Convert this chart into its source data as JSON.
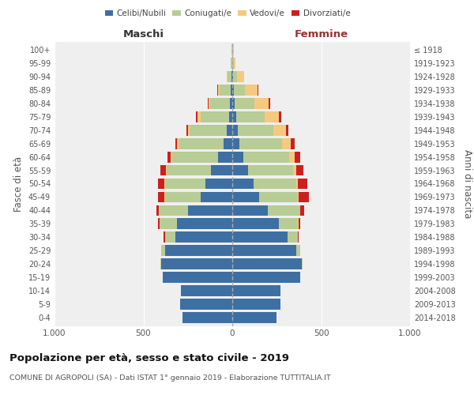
{
  "age_groups": [
    "0-4",
    "5-9",
    "10-14",
    "15-19",
    "20-24",
    "25-29",
    "30-34",
    "35-39",
    "40-44",
    "45-49",
    "50-54",
    "55-59",
    "60-64",
    "65-69",
    "70-74",
    "75-79",
    "80-84",
    "85-89",
    "90-94",
    "95-99",
    "100+"
  ],
  "birth_years": [
    "2014-2018",
    "2009-2013",
    "2004-2008",
    "1999-2003",
    "1994-1998",
    "1989-1993",
    "1984-1988",
    "1979-1983",
    "1974-1978",
    "1969-1973",
    "1964-1968",
    "1959-1963",
    "1954-1958",
    "1949-1953",
    "1944-1948",
    "1939-1943",
    "1934-1938",
    "1929-1933",
    "1924-1928",
    "1919-1923",
    "≤ 1918"
  ],
  "males": {
    "celibi": [
      280,
      295,
      290,
      390,
      400,
      380,
      320,
      310,
      250,
      180,
      150,
      120,
      80,
      50,
      30,
      20,
      15,
      10,
      5,
      2,
      2
    ],
    "coniugati": [
      0,
      0,
      0,
      3,
      5,
      20,
      60,
      100,
      160,
      200,
      230,
      250,
      260,
      250,
      210,
      160,
      110,
      60,
      20,
      5,
      2
    ],
    "vedovi": [
      0,
      0,
      0,
      0,
      0,
      0,
      0,
      0,
      2,
      2,
      2,
      3,
      5,
      10,
      10,
      15,
      10,
      10,
      5,
      2,
      0
    ],
    "divorziati": [
      0,
      0,
      0,
      0,
      0,
      0,
      5,
      10,
      15,
      35,
      35,
      30,
      20,
      10,
      10,
      10,
      5,
      5,
      2,
      0,
      0
    ]
  },
  "females": {
    "nubili": [
      250,
      270,
      270,
      380,
      390,
      360,
      310,
      260,
      200,
      150,
      120,
      90,
      60,
      40,
      30,
      20,
      15,
      10,
      5,
      2,
      2
    ],
    "coniugate": [
      0,
      0,
      0,
      3,
      5,
      20,
      60,
      110,
      180,
      220,
      240,
      250,
      260,
      240,
      200,
      160,
      110,
      60,
      20,
      5,
      3
    ],
    "vedove": [
      0,
      0,
      0,
      0,
      0,
      0,
      0,
      2,
      3,
      5,
      10,
      20,
      30,
      50,
      70,
      80,
      80,
      70,
      40,
      10,
      2
    ],
    "divorziate": [
      0,
      0,
      0,
      0,
      0,
      2,
      5,
      10,
      20,
      55,
      50,
      40,
      30,
      20,
      15,
      15,
      10,
      5,
      2,
      0,
      0
    ]
  },
  "colors": {
    "celibi": "#3e6fa3",
    "coniugati": "#b8cc96",
    "vedovi": "#f5ca7e",
    "divorziati": "#cc2020"
  },
  "legend_labels": [
    "Celibi/Nubili",
    "Coniugati/e",
    "Vedovi/e",
    "Divorziati/e"
  ],
  "title": "Popolazione per età, sesso e stato civile - 2019",
  "subtitle": "COMUNE DI AGROPOLI (SA) - Dati ISTAT 1° gennaio 2019 - Elaborazione TUTTITALIA.IT",
  "label_maschi": "Maschi",
  "label_femmine": "Femmine",
  "ylabel_left": "Fasce di età",
  "ylabel_right": "Anni di nascita",
  "xlim": 1000,
  "bg_color": "#ffffff",
  "plot_bg": "#efefef"
}
